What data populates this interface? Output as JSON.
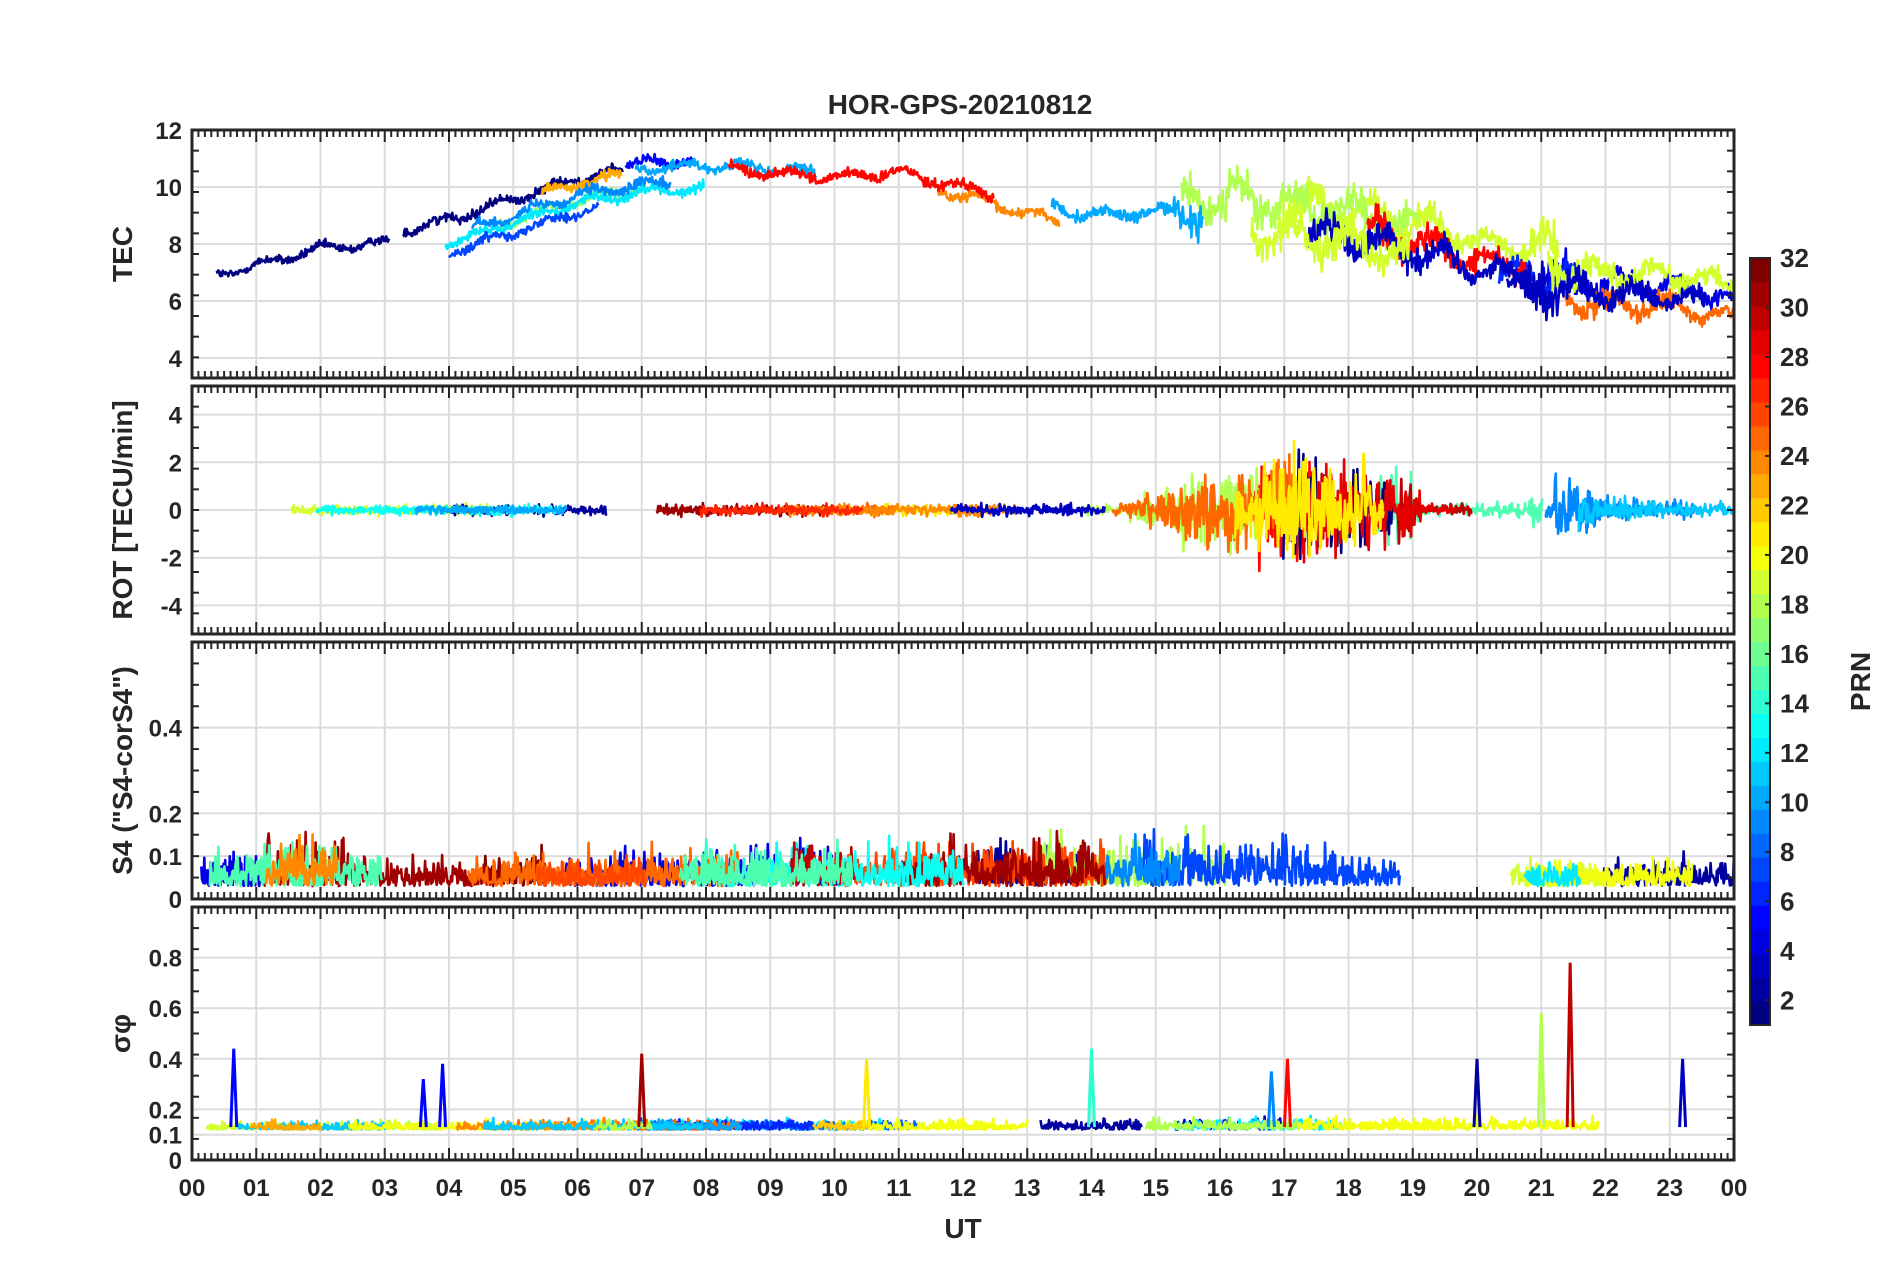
{
  "chart_data": {
    "type": "line",
    "title": "HOR-GPS-20210812",
    "xlabel": "UT",
    "xlim": [
      0,
      24
    ],
    "x_tick_labels": [
      "00",
      "01",
      "02",
      "03",
      "04",
      "05",
      "06",
      "07",
      "08",
      "09",
      "10",
      "11",
      "12",
      "13",
      "14",
      "15",
      "16",
      "17",
      "18",
      "19",
      "20",
      "21",
      "22",
      "23",
      "00"
    ],
    "colorbar": {
      "label": "PRN",
      "range": [
        1,
        32
      ],
      "tick_labels": [
        "32",
        "30",
        "28",
        "26",
        "24",
        "22",
        "20",
        "18",
        "16",
        "14",
        "12",
        "10",
        "8",
        "6",
        "4",
        "2"
      ],
      "colormap": "jet"
    },
    "panels": [
      {
        "id": "tec",
        "ylabel": "TEC",
        "ylim": [
          3.3,
          12
        ],
        "y_ticks": [
          4,
          6,
          8,
          10,
          12
        ],
        "y_tick_labels": [
          "4",
          "6",
          "8",
          "10",
          "12"
        ],
        "baseline": [
          [
            0,
            6.5
          ],
          [
            1,
            7.0
          ],
          [
            2,
            7.6
          ],
          [
            3,
            7.8
          ],
          [
            4,
            8.4
          ],
          [
            5,
            9.1
          ],
          [
            6,
            9.8
          ],
          [
            7,
            10.2
          ],
          [
            8,
            10.3
          ],
          [
            9,
            10.2
          ],
          [
            10,
            10.0
          ],
          [
            11,
            10.2
          ],
          [
            12,
            9.7
          ],
          [
            13,
            9.1
          ],
          [
            14,
            8.6
          ],
          [
            15,
            8.7
          ],
          [
            16,
            8.9
          ],
          [
            17,
            8.6
          ],
          [
            18,
            8.3
          ],
          [
            19,
            7.9
          ],
          [
            20,
            7.2
          ],
          [
            21,
            6.9
          ],
          [
            22,
            6.7
          ],
          [
            23,
            6.6
          ],
          [
            24,
            6.2
          ]
        ],
        "noise": [
          [
            0,
            0.3
          ],
          [
            15,
            0.4
          ],
          [
            15.8,
            1.4
          ],
          [
            19.3,
            1.0
          ],
          [
            20.5,
            0.6
          ],
          [
            21,
            1.3
          ],
          [
            22,
            0.8
          ],
          [
            24,
            0.6
          ]
        ]
      },
      {
        "id": "rot",
        "ylabel": "ROT [TECU/min]",
        "ylim": [
          -5.2,
          5.2
        ],
        "y_ticks": [
          -4,
          -2,
          0,
          2,
          4
        ],
        "y_tick_labels": [
          "-4",
          "-2",
          "0",
          "2",
          "4"
        ],
        "baseline": [
          [
            0,
            0
          ],
          [
            24,
            0
          ]
        ],
        "noise": [
          [
            0,
            0.15
          ],
          [
            14.5,
            0.2
          ],
          [
            15.5,
            1.2
          ],
          [
            17.5,
            1.8
          ],
          [
            19,
            1.0
          ],
          [
            19.2,
            0.15
          ],
          [
            20.8,
            0.3
          ],
          [
            21.2,
            1.2
          ],
          [
            22,
            0.4
          ],
          [
            24,
            0.2
          ]
        ]
      },
      {
        "id": "s4",
        "ylabel": "S4 (\"S4-corS4\")",
        "ylim": [
          0,
          0.6
        ],
        "y_ticks": [
          0,
          0.1,
          0.2,
          0.4
        ],
        "y_tick_labels": [
          "0",
          "0.1",
          "0.2",
          "0.4"
        ],
        "baseline": [
          [
            0,
            0.03
          ],
          [
            24,
            0.03
          ]
        ],
        "noise": [
          [
            0,
            0.05
          ],
          [
            2,
            0.07
          ],
          [
            3,
            0.04
          ],
          [
            14,
            0.07
          ],
          [
            17,
            0.07
          ],
          [
            19,
            0.04
          ],
          [
            24,
            0.04
          ]
        ]
      },
      {
        "id": "sigma_phi",
        "ylabel": "σφ",
        "ylim": [
          0,
          1.0
        ],
        "y_ticks": [
          0,
          0.1,
          0.2,
          0.4,
          0.6,
          0.8
        ],
        "y_tick_labels": [
          "0",
          "0.1",
          "0.2",
          "0.4",
          "0.6",
          "0.8"
        ],
        "baseline": [
          [
            0,
            0.12
          ],
          [
            24,
            0.12
          ]
        ],
        "noise": [
          [
            0,
            0.02
          ],
          [
            24,
            0.03
          ]
        ],
        "spikes": [
          [
            0.65,
            0.44
          ],
          [
            3.6,
            0.32
          ],
          [
            3.9,
            0.38
          ],
          [
            7.0,
            0.42
          ],
          [
            10.5,
            0.4
          ],
          [
            14.0,
            0.44
          ],
          [
            16.8,
            0.35
          ],
          [
            17.05,
            0.4
          ],
          [
            20.0,
            0.4
          ],
          [
            21.0,
            0.58
          ],
          [
            21.45,
            0.78
          ],
          [
            23.2,
            0.4
          ]
        ]
      }
    ]
  }
}
